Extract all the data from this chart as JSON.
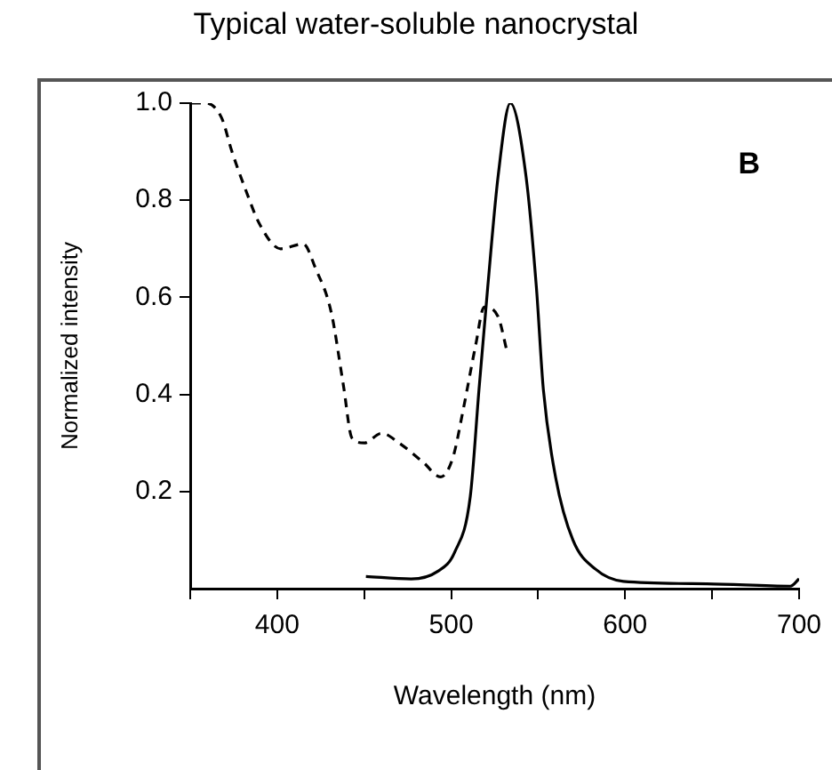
{
  "chart_data": {
    "type": "line",
    "title": "Typical water-soluble nanocrystal",
    "xlabel": "Wavelength (nm)",
    "ylabel": "Normalized intensity",
    "xlim": [
      350,
      700
    ],
    "xticks": [
      {
        "value": 350,
        "label": null
      },
      400,
      {
        "value": 450,
        "label": null
      },
      500,
      {
        "value": 550,
        "label": null
      },
      600,
      {
        "value": 650,
        "label": null
      },
      700
    ],
    "ylim": [
      0,
      1
    ],
    "yticks": [
      {
        "value": 0.2,
        "label": "0.2"
      },
      {
        "value": 0.4,
        "label": "0.4"
      },
      {
        "value": 0.6,
        "label": "0.6"
      },
      {
        "value": 0.8,
        "label": "0.8"
      },
      {
        "value": 1,
        "label": "1.0"
      }
    ],
    "grid": false,
    "legend": false,
    "marker": "none",
    "annotations": [
      "B"
    ],
    "series": [
      {
        "color": "#000000",
        "line_style": "dashed",
        "x": [
          351,
          359,
          368,
          374,
          382,
          390,
          402,
          415,
          422,
          431,
          438,
          443,
          450,
          460,
          470,
          484,
          494,
          501,
          507,
          514,
          519,
          527,
          532
        ],
        "values": [
          1.0,
          1.0,
          0.97,
          0.9,
          0.82,
          0.75,
          0.7,
          0.71,
          0.66,
          0.57,
          0.42,
          0.31,
          0.3,
          0.32,
          0.3,
          0.26,
          0.23,
          0.27,
          0.37,
          0.5,
          0.58,
          0.56,
          0.49
        ]
      },
      {
        "color": "#000000",
        "line_style": "solid",
        "x": [
          451,
          477,
          492,
          502,
          511,
          516,
          521,
          527,
          534,
          543,
          549,
          553,
          560,
          570,
          583,
          599,
          647,
          695,
          700
        ],
        "values": [
          0.025,
          0.02,
          0.035,
          0.075,
          0.19,
          0.41,
          0.62,
          0.85,
          1.0,
          0.85,
          0.62,
          0.41,
          0.23,
          0.1,
          0.04,
          0.015,
          0.01,
          0.005,
          0.02
        ]
      }
    ]
  }
}
